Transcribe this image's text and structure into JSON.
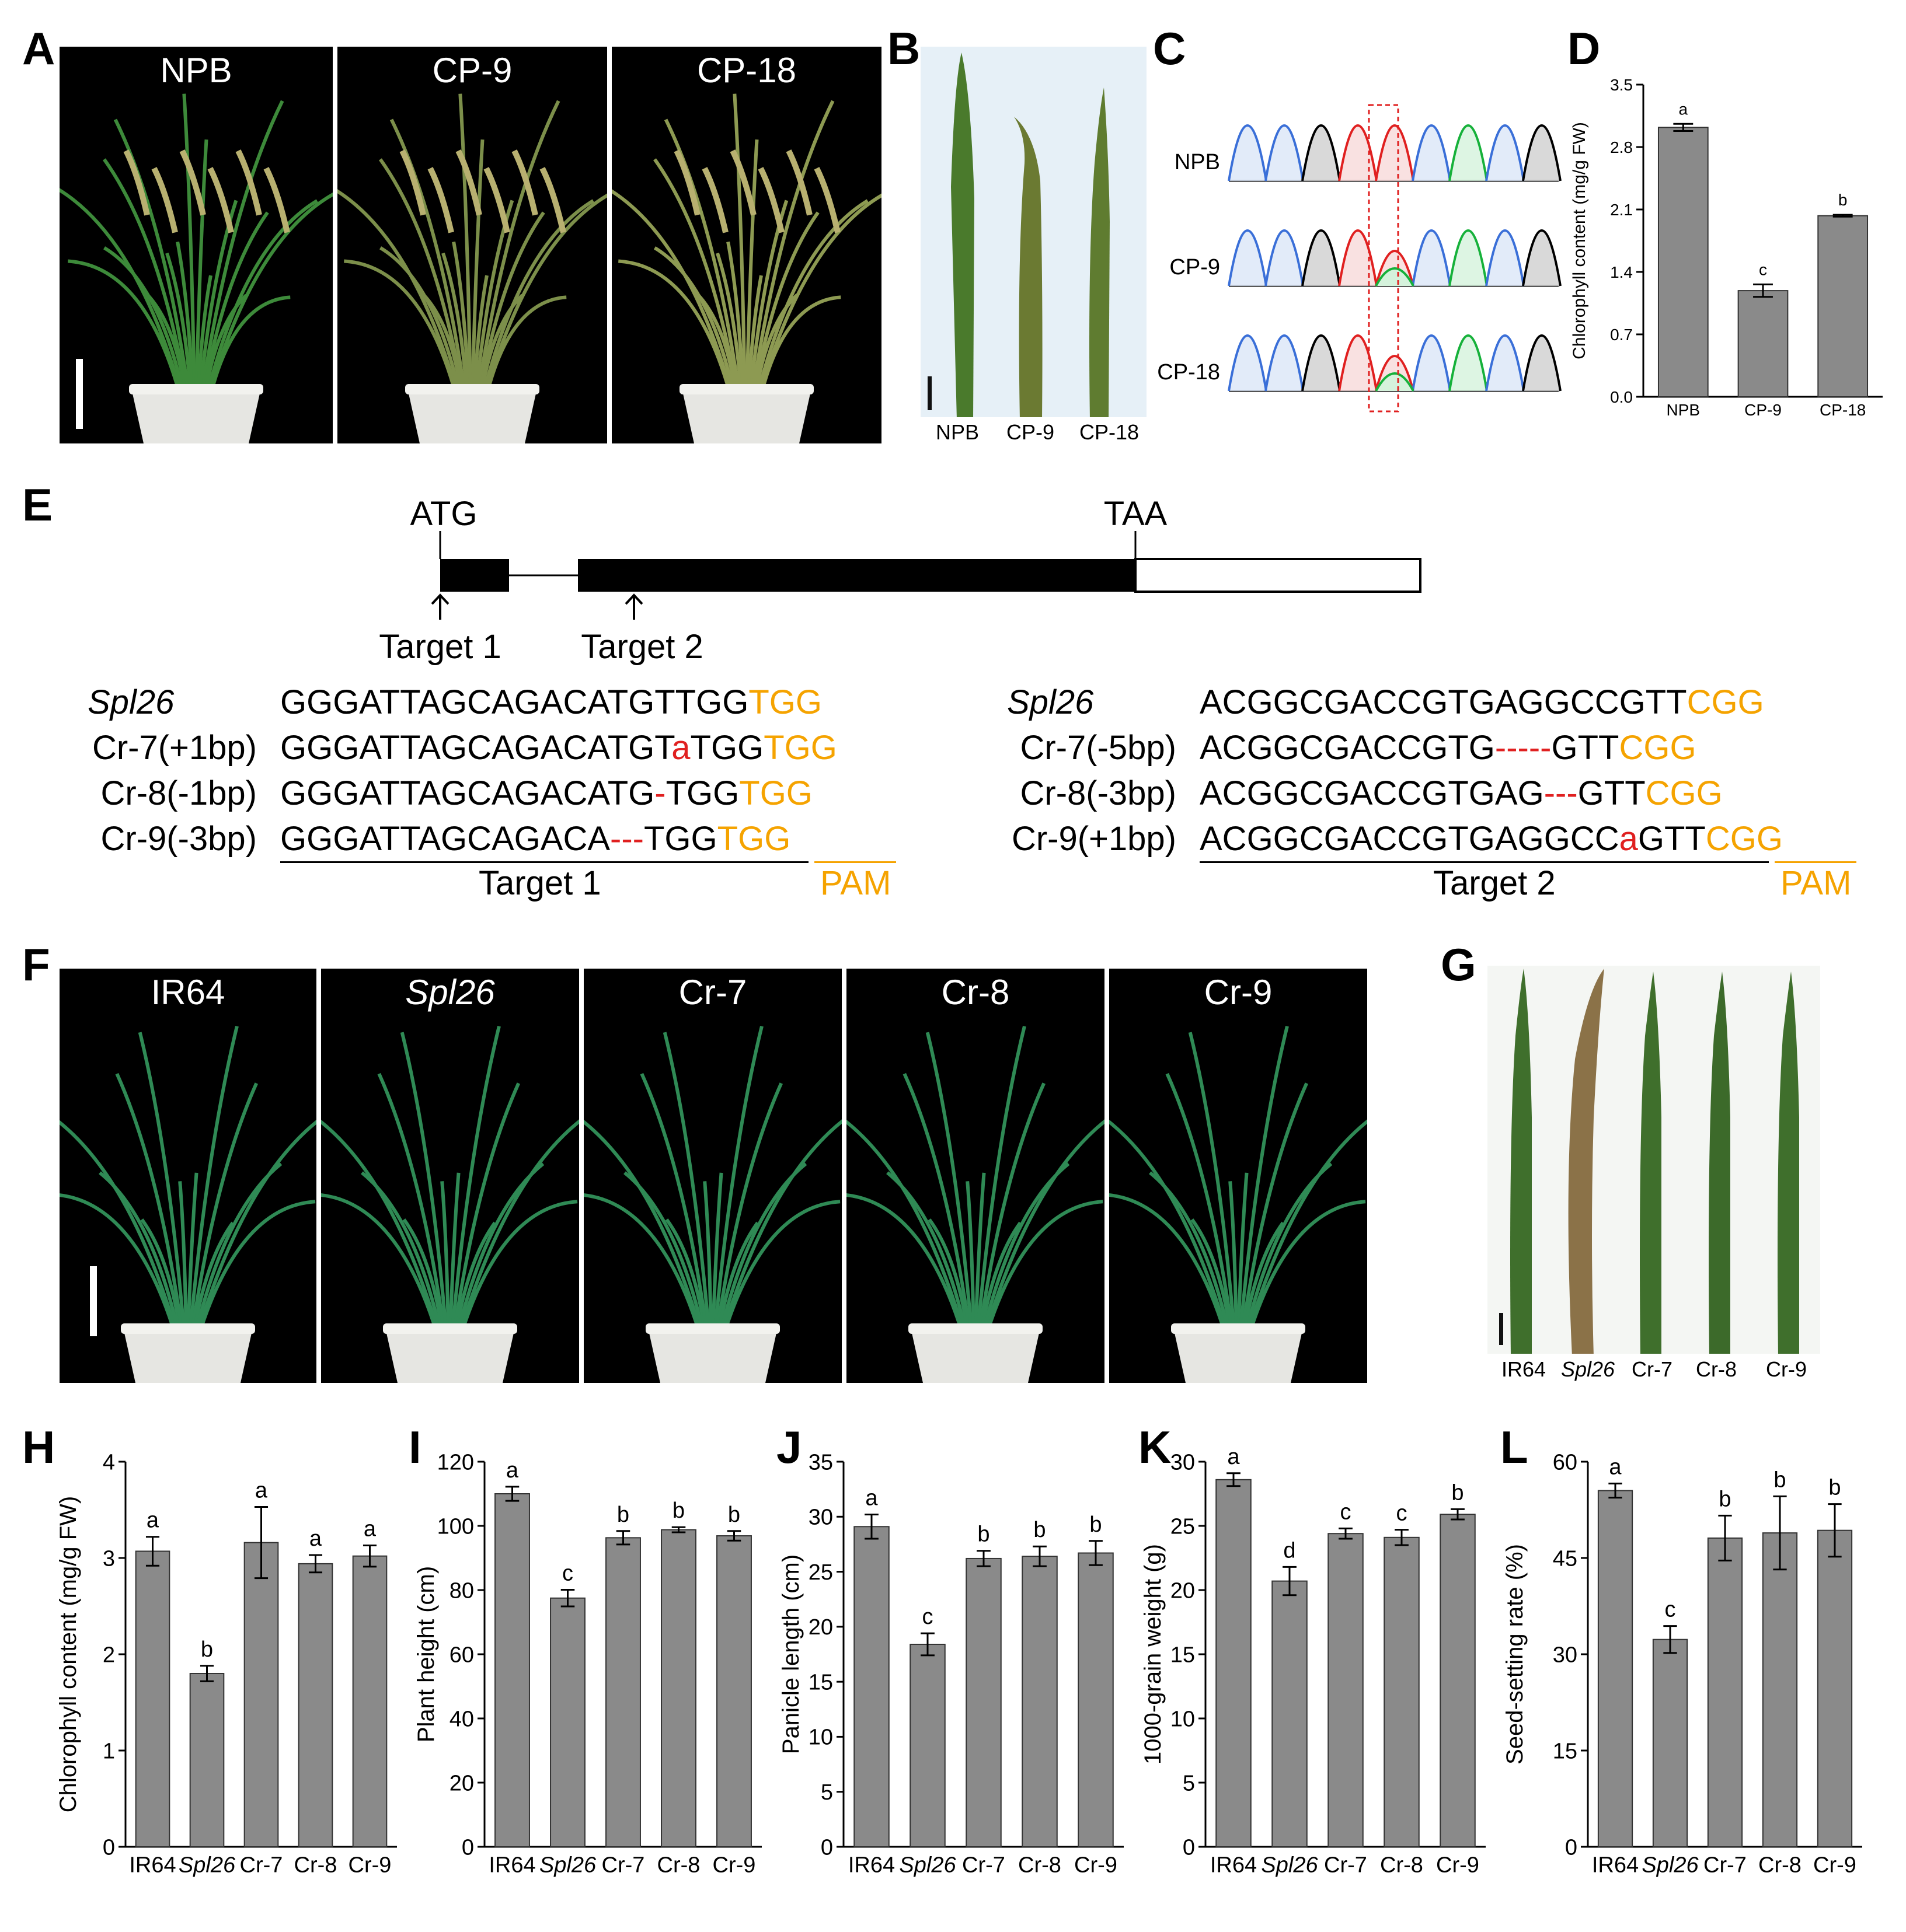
{
  "panels": {
    "A": "A",
    "B": "B",
    "C": "C",
    "D": "D",
    "E": "E",
    "F": "F",
    "G": "G",
    "H": "H",
    "I": "I",
    "J": "J",
    "K": "K",
    "L": "L"
  },
  "panelA": {
    "labels": [
      "NPB",
      "CP-9",
      "CP-18"
    ]
  },
  "panelB": {
    "labels": [
      "NPB",
      "CP-9",
      "CP-18"
    ]
  },
  "panelC": {
    "labels": [
      "NPB",
      "CP-9",
      "CP-18"
    ]
  },
  "panelE": {
    "gene": {
      "start": "ATG",
      "stop": "TAA",
      "target1": "Target 1",
      "target2": "Target 2"
    },
    "left": {
      "rows": [
        {
          "name": "Spl26",
          "pre": "GGGATTAGCAGACATGTTGG",
          "mut": "",
          "post": "",
          "pam": "TGG"
        },
        {
          "name": "Cr-7(+1bp)",
          "pre": "GGGATTAGCAGACATGT",
          "mut": "a",
          "post": "TGG",
          "pam": "TGG"
        },
        {
          "name": "Cr-8(-1bp)",
          "pre": "GGGATTAGCAGACATG",
          "mut": "-",
          "post": "TGG",
          "pam": "TGG"
        },
        {
          "name": "Cr-9(-3bp)",
          "pre": "GGGATTAGCAGACA",
          "mut": "---",
          "post": "TGG",
          "pam": "TGG"
        }
      ],
      "target": "Target 1",
      "pamlabel": "PAM"
    },
    "right": {
      "rows": [
        {
          "name": "Spl26",
          "pre": "ACGGCGACCGTGAGGCCGTT",
          "mut": "",
          "post": "",
          "pam": "CGG"
        },
        {
          "name": "Cr-7(-5bp)",
          "pre": "ACGGCGACCGTG",
          "mut": "-----",
          "post": "GTT",
          "pam": "CGG"
        },
        {
          "name": "Cr-8(-3bp)",
          "pre": "ACGGCGACCGTGAG",
          "mut": "---",
          "post": "GTT",
          "pam": "CGG"
        },
        {
          "name": "Cr-9(+1bp)",
          "pre": "ACGGCGACCGTGAGGCC",
          "mut": "a",
          "post": "GTT",
          "pam": "CGG"
        }
      ],
      "target": "Target 2",
      "pamlabel": "PAM"
    }
  },
  "panelF": {
    "labels": [
      "IR64",
      "Spl26",
      "Cr-7",
      "Cr-8",
      "Cr-9"
    ]
  },
  "panelG": {
    "labels": [
      "IR64",
      "Spl26",
      "Cr-7",
      "Cr-8",
      "Cr-9"
    ]
  },
  "colors": {
    "bar": "#8a8a8a",
    "pam": "#f5a300",
    "mut": "#e02020"
  },
  "chart_data": [
    {
      "id": "D",
      "type": "bar",
      "categories": [
        "NPB",
        "CP-9",
        "CP-18"
      ],
      "values": [
        3.02,
        1.19,
        2.03
      ],
      "errors": [
        0.04,
        0.07,
        0.01
      ],
      "letters": [
        "a",
        "c",
        "b"
      ],
      "ylabel": "Chlorophyll content (mg/g FW)",
      "ylim": [
        0,
        3.5
      ],
      "yticks": [
        0.0,
        0.7,
        1.4,
        2.1,
        2.8,
        3.5
      ],
      "tick_labels": [
        "0.0",
        "0.7",
        "1.4",
        "2.1",
        "2.8",
        "3.5"
      ]
    },
    {
      "id": "H",
      "type": "bar",
      "categories": [
        "IR64",
        "Spl26",
        "Cr-7",
        "Cr-8",
        "Cr-9"
      ],
      "values": [
        3.07,
        1.8,
        3.16,
        2.94,
        3.02
      ],
      "errors": [
        0.15,
        0.08,
        0.37,
        0.09,
        0.11
      ],
      "letters": [
        "a",
        "b",
        "a",
        "a",
        "a"
      ],
      "ylabel": "Chlorophyll content (mg/g FW)",
      "ylim": [
        0,
        4
      ],
      "yticks": [
        0,
        1,
        2,
        3,
        4
      ],
      "tick_labels": [
        "0",
        "1",
        "2",
        "3",
        "4"
      ]
    },
    {
      "id": "I",
      "type": "bar",
      "categories": [
        "IR64",
        "Spl26",
        "Cr-7",
        "Cr-8",
        "Cr-9"
      ],
      "values": [
        110,
        77.5,
        96.3,
        98.8,
        96.9
      ],
      "errors": [
        2.2,
        2.6,
        2.1,
        0.8,
        1.5
      ],
      "letters": [
        "a",
        "c",
        "b",
        "b",
        "b"
      ],
      "ylabel": "Plant height (cm)",
      "ylim": [
        0,
        120
      ],
      "yticks": [
        0,
        20,
        40,
        60,
        80,
        100,
        120
      ],
      "tick_labels": [
        "0",
        "20",
        "40",
        "60",
        "80",
        "100",
        "120"
      ]
    },
    {
      "id": "J",
      "type": "bar",
      "categories": [
        "IR64",
        "Spl26",
        "Cr-7",
        "Cr-8",
        "Cr-9"
      ],
      "values": [
        29.1,
        18.4,
        26.2,
        26.4,
        26.7
      ],
      "errors": [
        1.1,
        1.0,
        0.7,
        0.9,
        1.1
      ],
      "letters": [
        "a",
        "c",
        "b",
        "b",
        "b"
      ],
      "ylabel": "Panicle length (cm)",
      "ylim": [
        0,
        35
      ],
      "yticks": [
        0,
        5,
        10,
        15,
        20,
        25,
        30,
        35
      ],
      "tick_labels": [
        "0",
        "5",
        "10",
        "15",
        "20",
        "25",
        "30",
        "35"
      ]
    },
    {
      "id": "K",
      "type": "bar",
      "categories": [
        "IR64",
        "Spl26",
        "Cr-7",
        "Cr-8",
        "Cr-9"
      ],
      "values": [
        28.6,
        20.7,
        24.4,
        24.1,
        25.9
      ],
      "errors": [
        0.5,
        1.1,
        0.4,
        0.6,
        0.4
      ],
      "letters": [
        "a",
        "d",
        "c",
        "c",
        "b"
      ],
      "ylabel": "1000-grain weight (g)",
      "ylim": [
        0,
        30
      ],
      "yticks": [
        0,
        5,
        10,
        15,
        20,
        25,
        30
      ],
      "tick_labels": [
        "0",
        "5",
        "10",
        "15",
        "20",
        "25",
        "30"
      ]
    },
    {
      "id": "L",
      "type": "bar",
      "categories": [
        "IR64",
        "Spl26",
        "Cr-7",
        "Cr-8",
        "Cr-9"
      ],
      "values": [
        55.5,
        32.3,
        48.1,
        48.9,
        49.3
      ],
      "errors": [
        1.1,
        2.1,
        3.5,
        5.7,
        4.1
      ],
      "letters": [
        "a",
        "c",
        "b",
        "b",
        "b"
      ],
      "ylabel": "Seed-setting rate (%)",
      "ylim": [
        0,
        60
      ],
      "yticks": [
        0,
        15,
        30,
        45,
        60
      ],
      "tick_labels": [
        "0",
        "15",
        "30",
        "45",
        "60"
      ]
    }
  ]
}
